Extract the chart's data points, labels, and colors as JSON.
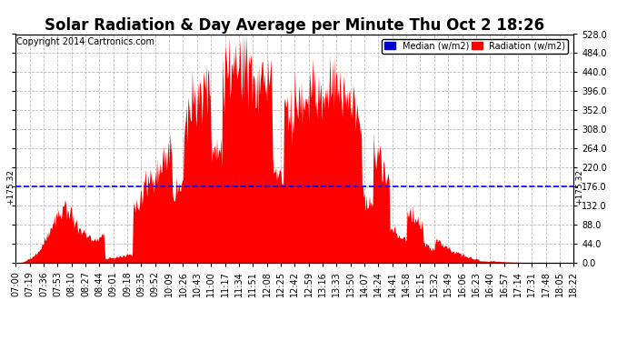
{
  "title": "Solar Radiation & Day Average per Minute Thu Oct 2 18:26",
  "copyright": "Copyright 2014 Cartronics.com",
  "median_line": 175.32,
  "median_label": "+175.32",
  "ylim": [
    0,
    528.0
  ],
  "yticks": [
    0.0,
    44.0,
    88.0,
    132.0,
    176.0,
    220.0,
    264.0,
    308.0,
    352.0,
    396.0,
    440.0,
    484.0,
    528.0
  ],
  "legend_median_color": "#0000cc",
  "legend_radiation_color": "#ff0000",
  "fill_color": "#ff0000",
  "background_color": "#ffffff",
  "grid_color": "#bbbbbb",
  "median_line_color": "#0000ff",
  "title_fontsize": 12,
  "copyright_fontsize": 7,
  "tick_fontsize": 7,
  "x_labels": [
    "07:00",
    "07:19",
    "07:36",
    "07:53",
    "08:10",
    "08:27",
    "08:44",
    "09:01",
    "09:18",
    "09:35",
    "09:52",
    "10:09",
    "10:26",
    "10:43",
    "11:00",
    "11:17",
    "11:34",
    "11:51",
    "12:08",
    "12:25",
    "12:42",
    "12:59",
    "13:16",
    "13:33",
    "13:50",
    "14:07",
    "14:24",
    "14:41",
    "14:58",
    "15:15",
    "15:32",
    "15:49",
    "16:06",
    "16:23",
    "16:40",
    "16:57",
    "17:14",
    "17:31",
    "17:48",
    "18:05",
    "18:22"
  ]
}
